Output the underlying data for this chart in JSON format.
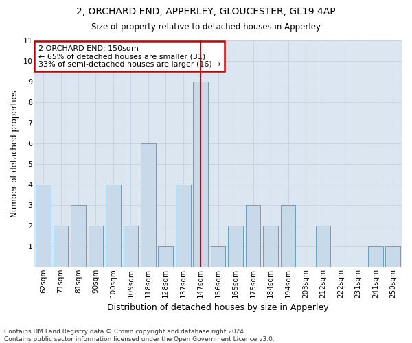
{
  "title": "2, ORCHARD END, APPERLEY, GLOUCESTER, GL19 4AP",
  "subtitle": "Size of property relative to detached houses in Apperley",
  "xlabel": "Distribution of detached houses by size in Apperley",
  "ylabel": "Number of detached properties",
  "categories": [
    "62sqm",
    "71sqm",
    "81sqm",
    "90sqm",
    "100sqm",
    "109sqm",
    "118sqm",
    "128sqm",
    "137sqm",
    "147sqm",
    "156sqm",
    "165sqm",
    "175sqm",
    "184sqm",
    "194sqm",
    "203sqm",
    "212sqm",
    "222sqm",
    "231sqm",
    "241sqm",
    "250sqm"
  ],
  "values": [
    4,
    2,
    3,
    2,
    4,
    2,
    6,
    1,
    4,
    9,
    1,
    2,
    3,
    2,
    3,
    0,
    2,
    0,
    0,
    1,
    1
  ],
  "highlight_index": 9,
  "bar_color": "#c8d9ea",
  "bar_edge_color": "#6a9fc0",
  "highlight_line_color": "#cc0000",
  "ylim": [
    0,
    11
  ],
  "yticks": [
    0,
    1,
    2,
    3,
    4,
    5,
    6,
    7,
    8,
    9,
    10,
    11
  ],
  "grid_color": "#c8d4e4",
  "bg_color": "#dce6f0",
  "annotation_text": "2 ORCHARD END: 150sqm\n← 65% of detached houses are smaller (31)\n33% of semi-detached houses are larger (16) →",
  "annotation_box_color": "#ffffff",
  "annotation_box_edge": "#cc0000",
  "footnote1": "Contains HM Land Registry data © Crown copyright and database right 2024.",
  "footnote2": "Contains public sector information licensed under the Open Government Licence v3.0."
}
